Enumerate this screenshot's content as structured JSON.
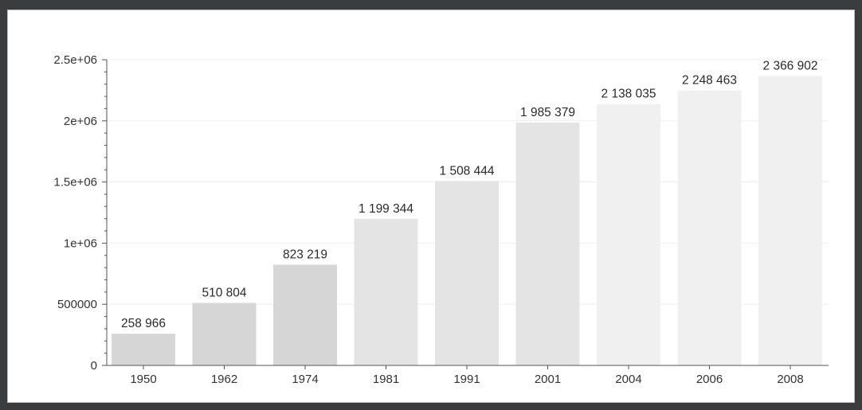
{
  "chart_data": {
    "type": "bar",
    "categories": [
      "1950",
      "1962",
      "1974",
      "1981",
      "1991",
      "2001",
      "2004",
      "2006",
      "2008"
    ],
    "values": [
      258966,
      510804,
      823219,
      1199344,
      1508444,
      1985379,
      2138035,
      2248463,
      2366902
    ],
    "data_labels": [
      "258 966",
      "510 804",
      "823 219",
      "1 199 344",
      "1 508 444",
      "1 985 379",
      "2 138 035",
      "2 248 463",
      "2 366 902"
    ],
    "y_ticks": [
      {
        "value": 0,
        "label": "0"
      },
      {
        "value": 500000,
        "label": "500000"
      },
      {
        "value": 1000000,
        "label": "1e+06"
      },
      {
        "value": 1500000,
        "label": "1.5e+06"
      },
      {
        "value": 2000000,
        "label": "2e+06"
      },
      {
        "value": 2500000,
        "label": "2.5e+06"
      }
    ],
    "ylim": [
      0,
      2500000
    ],
    "title": "",
    "xlabel": "",
    "ylabel": "",
    "grid": true,
    "colors": {
      "bar_early": "#d6d6d6",
      "bar_mid": "#e4e4e4",
      "bar_late": "#f0f0f0"
    }
  }
}
